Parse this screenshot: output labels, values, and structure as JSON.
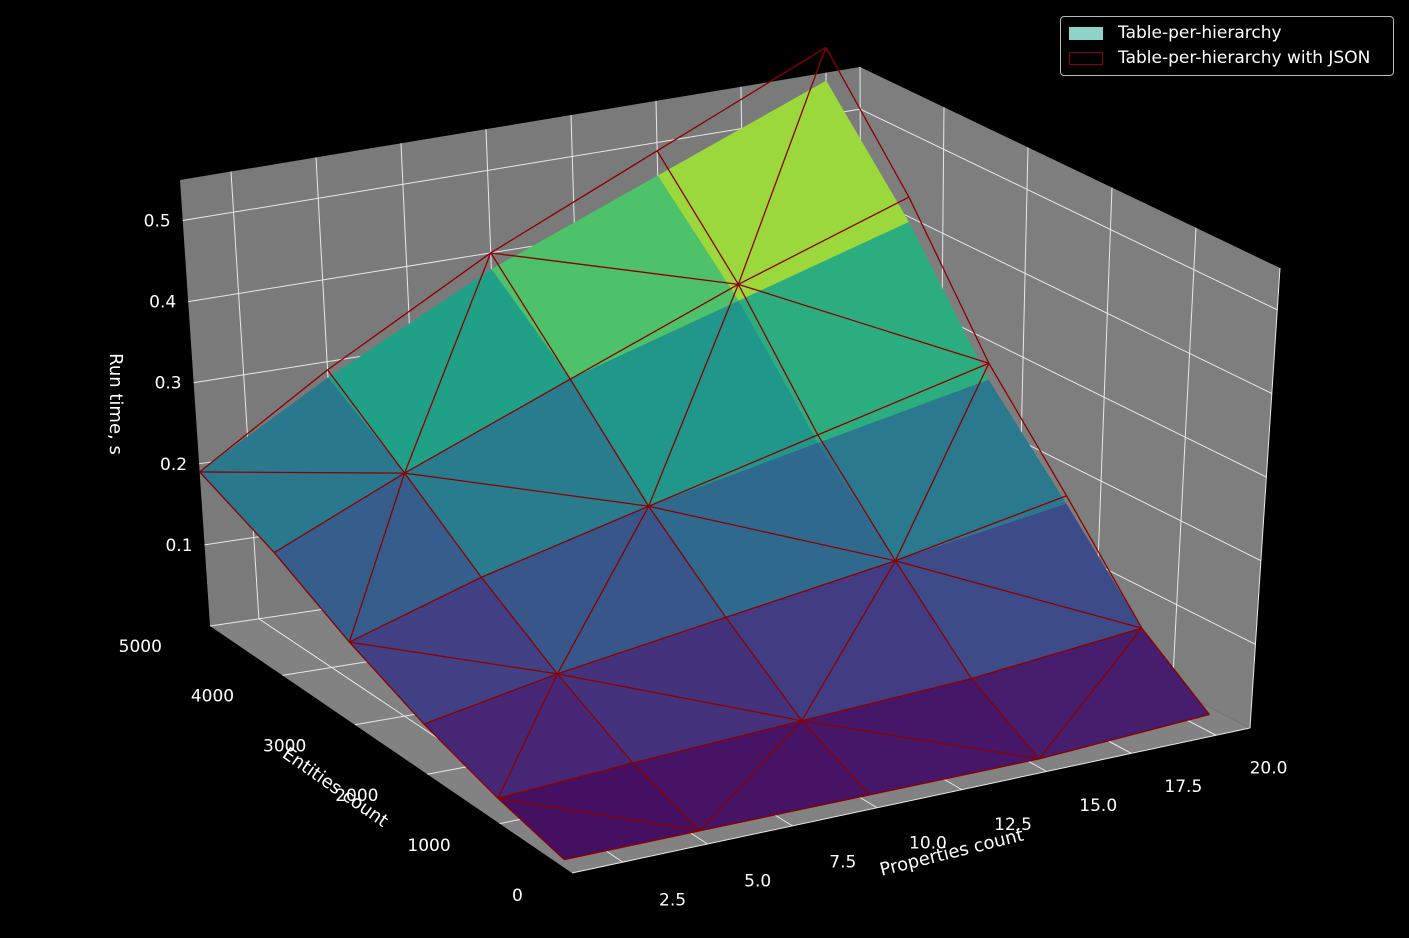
{
  "chart_data": {
    "type": "surface3d",
    "title": "",
    "xlabel": "Properties count",
    "ylabel": "Entities count",
    "zlabel": "Run time, s",
    "x_ticks": [
      "2.5",
      "5.0",
      "7.5",
      "10.0",
      "12.5",
      "15.0",
      "17.5",
      "20.0"
    ],
    "y_ticks": [
      "0",
      "1000",
      "2000",
      "3000",
      "4000",
      "5000"
    ],
    "z_ticks": [
      "0.1",
      "0.2",
      "0.3",
      "0.4",
      "0.5"
    ],
    "xlim": [
      1,
      21
    ],
    "ylim": [
      0,
      5000
    ],
    "zlim": [
      0,
      0.55
    ],
    "grid": true,
    "legend_position": "upper right",
    "x": [
      1,
      5,
      10,
      15,
      20
    ],
    "y": [
      100,
      1000,
      2000,
      3000,
      4000,
      5000
    ],
    "series": [
      {
        "name": "Table-per-hierarchy",
        "style": "filled surface, viridis colormap",
        "z": [
          [
            0.01,
            0.01,
            0.01,
            0.01,
            0.02
          ],
          [
            0.03,
            0.04,
            0.05,
            0.06,
            0.08
          ],
          [
            0.06,
            0.09,
            0.12,
            0.15,
            0.18
          ],
          [
            0.1,
            0.15,
            0.2,
            0.24,
            0.28
          ],
          [
            0.15,
            0.22,
            0.3,
            0.36,
            0.42
          ],
          [
            0.19,
            0.28,
            0.38,
            0.46,
            0.54
          ]
        ]
      },
      {
        "name": "Table-per-hierarchy with JSON",
        "style": "wireframe triangulation, dark red",
        "z": [
          [
            0.01,
            0.01,
            0.01,
            0.01,
            0.02
          ],
          [
            0.03,
            0.04,
            0.05,
            0.06,
            0.08
          ],
          [
            0.06,
            0.09,
            0.12,
            0.15,
            0.19
          ],
          [
            0.1,
            0.15,
            0.2,
            0.25,
            0.3
          ],
          [
            0.15,
            0.22,
            0.3,
            0.38,
            0.45
          ],
          [
            0.19,
            0.29,
            0.4,
            0.49,
            0.58
          ]
        ]
      }
    ]
  },
  "legend": {
    "items": [
      {
        "label": "Table-per-hierarchy",
        "color": "#8dd3c7",
        "style": "filled"
      },
      {
        "label": "Table-per-hierarchy with JSON",
        "color": "#8b0000",
        "style": "outline"
      }
    ]
  },
  "colors": {
    "background": "#000000",
    "pane": "#808080",
    "grid": "#ffffff",
    "wire": "#8b0000"
  }
}
